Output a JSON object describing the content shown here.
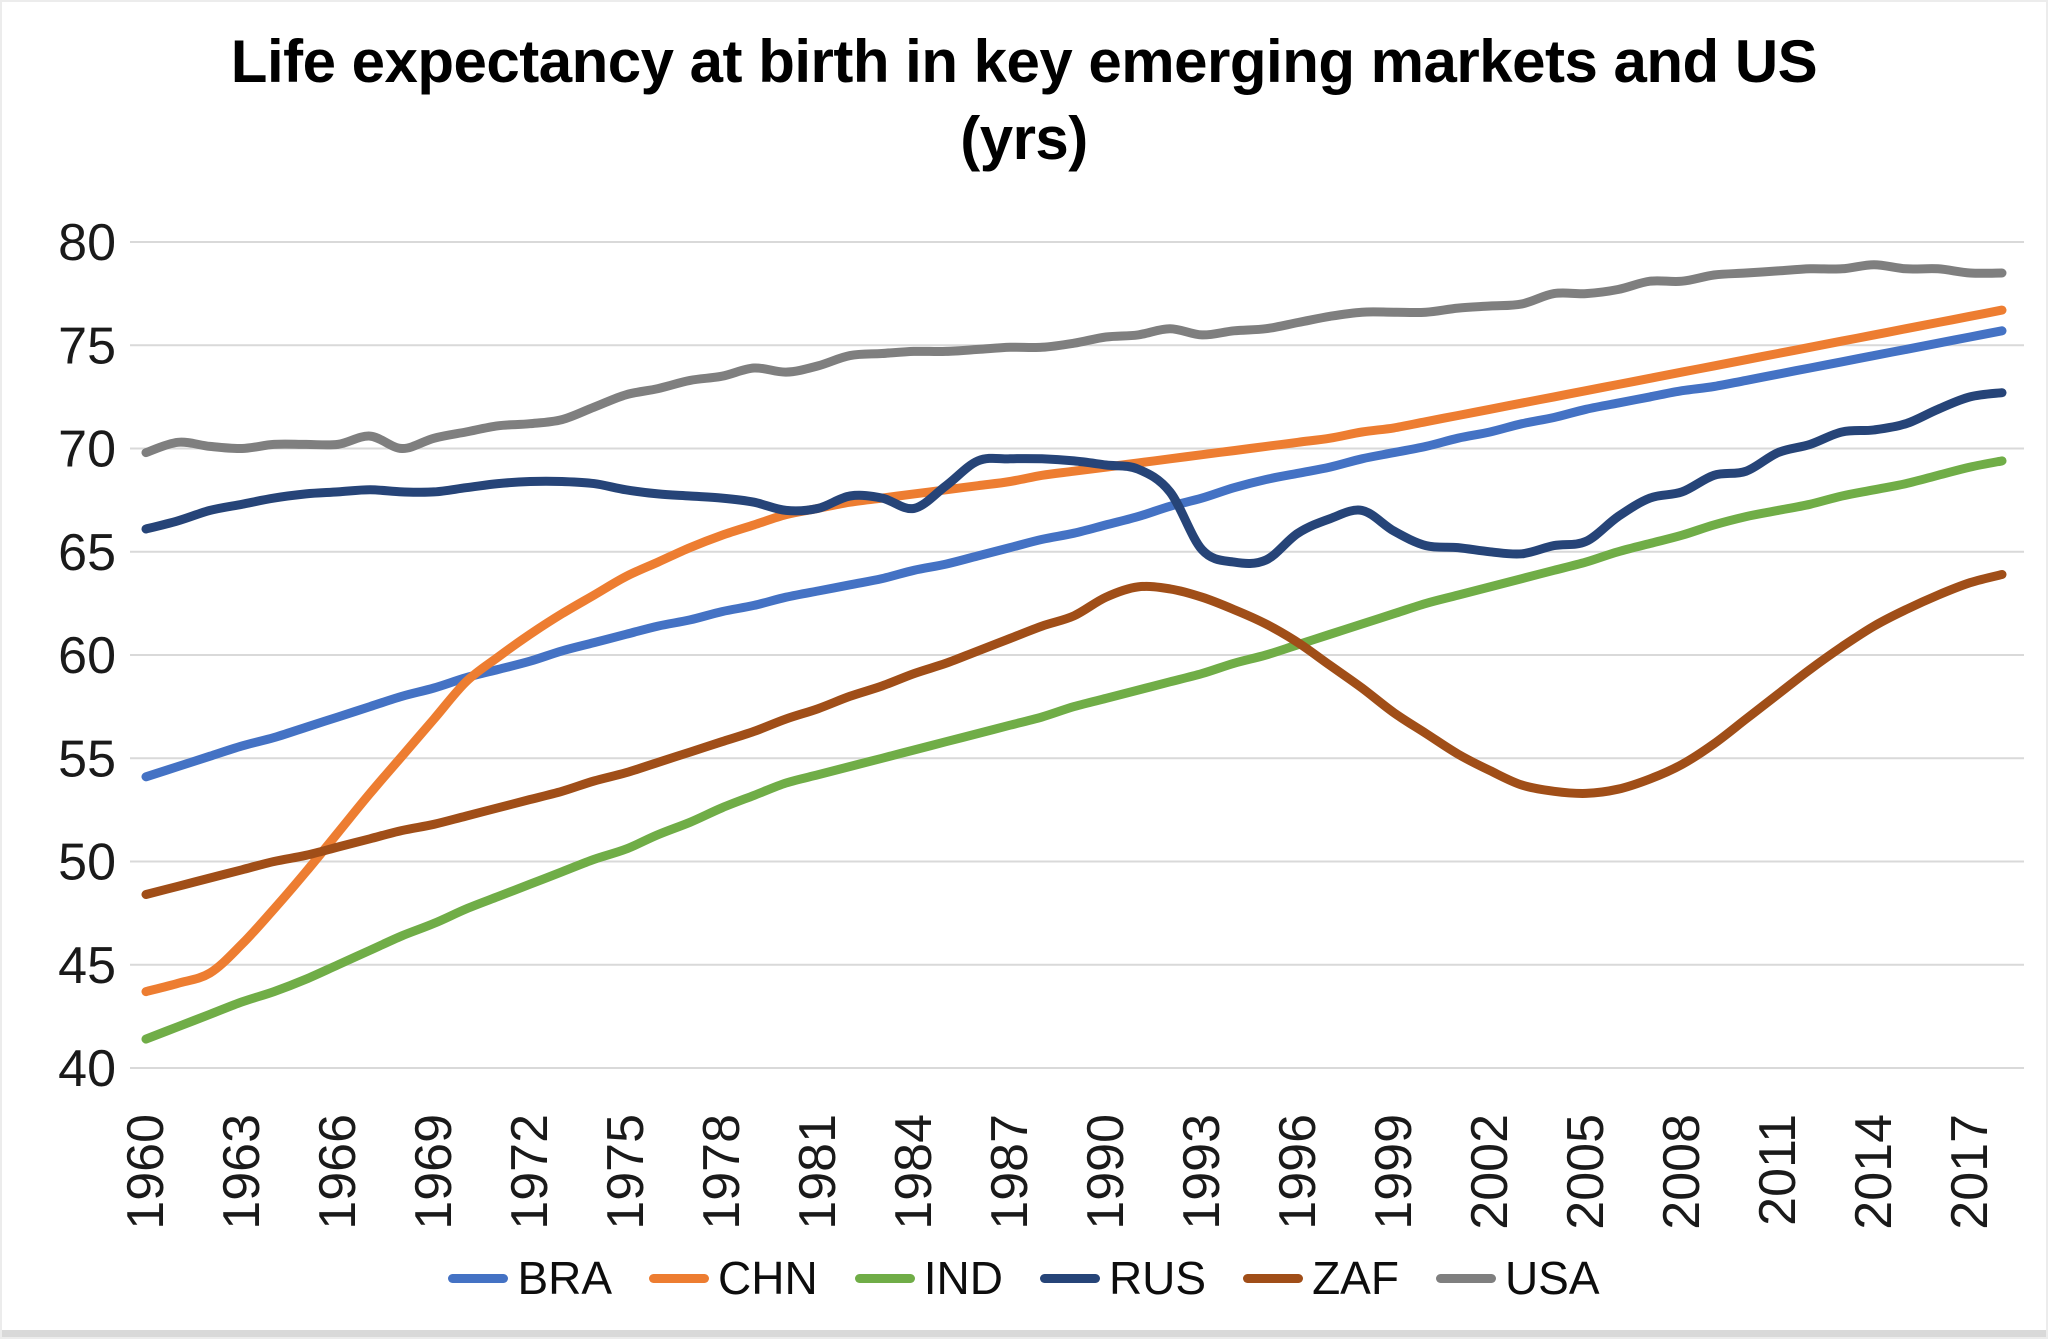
{
  "title": {
    "line1": "Life expectancy at birth in key emerging markets and US",
    "line2": "(yrs)"
  },
  "chart_data": {
    "type": "line",
    "title": "Life expectancy at birth in key emerging markets and US (yrs)",
    "xlabel": "",
    "ylabel": "",
    "ylim": [
      40,
      80
    ],
    "xlim": [
      1960,
      2018
    ],
    "grid": true,
    "gridline_color": "#d9d9d9",
    "axis_text_color": "#1a1a1a",
    "legend_position": "bottom",
    "y_ticks": [
      80,
      75,
      70,
      65,
      60,
      55,
      50,
      45,
      40
    ],
    "x_ticks": [
      1960,
      1963,
      1966,
      1969,
      1972,
      1975,
      1978,
      1981,
      1984,
      1987,
      1990,
      1993,
      1996,
      1999,
      2002,
      2005,
      2008,
      2011,
      2014,
      2017
    ],
    "years": [
      1960,
      1961,
      1962,
      1963,
      1964,
      1965,
      1966,
      1967,
      1968,
      1969,
      1970,
      1971,
      1972,
      1973,
      1974,
      1975,
      1976,
      1977,
      1978,
      1979,
      1980,
      1981,
      1982,
      1983,
      1984,
      1985,
      1986,
      1987,
      1988,
      1989,
      1990,
      1991,
      1992,
      1993,
      1994,
      1995,
      1996,
      1997,
      1998,
      1999,
      2000,
      2001,
      2002,
      2003,
      2004,
      2005,
      2006,
      2007,
      2008,
      2009,
      2010,
      2011,
      2012,
      2013,
      2014,
      2015,
      2016,
      2017,
      2018
    ],
    "series": [
      {
        "name": "BRA",
        "color": "#4472C4",
        "values": [
          54.1,
          54.6,
          55.1,
          55.6,
          56.0,
          56.5,
          57.0,
          57.5,
          58.0,
          58.4,
          58.9,
          59.3,
          59.7,
          60.2,
          60.6,
          61.0,
          61.4,
          61.7,
          62.1,
          62.4,
          62.8,
          63.1,
          63.4,
          63.7,
          64.1,
          64.4,
          64.8,
          65.2,
          65.6,
          65.9,
          66.3,
          66.7,
          67.2,
          67.6,
          68.1,
          68.5,
          68.8,
          69.1,
          69.5,
          69.8,
          70.1,
          70.5,
          70.8,
          71.2,
          71.5,
          71.9,
          72.2,
          72.5,
          72.8,
          73.0,
          73.3,
          73.6,
          73.9,
          74.2,
          74.5,
          74.8,
          75.1,
          75.4,
          75.7
        ]
      },
      {
        "name": "CHN",
        "color": "#ED7D31",
        "values": [
          43.7,
          44.1,
          44.6,
          46.0,
          47.7,
          49.5,
          51.4,
          53.3,
          55.1,
          56.9,
          58.7,
          59.9,
          61.0,
          62.0,
          62.9,
          63.8,
          64.5,
          65.2,
          65.8,
          66.3,
          66.8,
          67.1,
          67.4,
          67.6,
          67.8,
          68.0,
          68.2,
          68.4,
          68.7,
          68.9,
          69.1,
          69.3,
          69.5,
          69.7,
          69.9,
          70.1,
          70.3,
          70.5,
          70.8,
          71.0,
          71.3,
          71.6,
          71.9,
          72.2,
          72.5,
          72.8,
          73.1,
          73.4,
          73.7,
          74.0,
          74.3,
          74.6,
          74.9,
          75.2,
          75.5,
          75.8,
          76.1,
          76.4,
          76.7
        ]
      },
      {
        "name": "IND",
        "color": "#70AD47",
        "values": [
          41.4,
          42.0,
          42.6,
          43.2,
          43.7,
          44.3,
          45.0,
          45.7,
          46.4,
          47.0,
          47.7,
          48.3,
          48.9,
          49.5,
          50.1,
          50.6,
          51.3,
          51.9,
          52.6,
          53.2,
          53.8,
          54.2,
          54.6,
          55.0,
          55.4,
          55.8,
          56.2,
          56.6,
          57.0,
          57.5,
          57.9,
          58.3,
          58.7,
          59.1,
          59.6,
          60.0,
          60.5,
          61.0,
          61.5,
          62.0,
          62.5,
          62.9,
          63.3,
          63.7,
          64.1,
          64.5,
          65.0,
          65.4,
          65.8,
          66.3,
          66.7,
          67.0,
          67.3,
          67.7,
          68.0,
          68.3,
          68.7,
          69.1,
          69.4
        ]
      },
      {
        "name": "RUS",
        "color": "#264478",
        "values": [
          66.1,
          66.5,
          67.0,
          67.3,
          67.6,
          67.8,
          67.9,
          68.0,
          67.9,
          67.9,
          68.1,
          68.3,
          68.4,
          68.4,
          68.3,
          68.0,
          67.8,
          67.7,
          67.6,
          67.4,
          67.0,
          67.1,
          67.7,
          67.6,
          67.1,
          68.2,
          69.4,
          69.5,
          69.5,
          69.4,
          69.2,
          69.0,
          67.9,
          65.1,
          64.5,
          64.6,
          65.9,
          66.6,
          67.0,
          66.0,
          65.3,
          65.2,
          65.0,
          64.9,
          65.3,
          65.5,
          66.7,
          67.6,
          67.9,
          68.7,
          68.9,
          69.8,
          70.2,
          70.8,
          70.9,
          71.2,
          71.9,
          72.5,
          72.7
        ]
      },
      {
        "name": "ZAF",
        "color": "#A04E18",
        "values": [
          48.4,
          48.8,
          49.2,
          49.6,
          50.0,
          50.3,
          50.7,
          51.1,
          51.5,
          51.8,
          52.2,
          52.6,
          53.0,
          53.4,
          53.9,
          54.3,
          54.8,
          55.3,
          55.8,
          56.3,
          56.9,
          57.4,
          58.0,
          58.5,
          59.1,
          59.6,
          60.2,
          60.8,
          61.4,
          61.9,
          62.8,
          63.3,
          63.2,
          62.8,
          62.2,
          61.5,
          60.6,
          59.5,
          58.4,
          57.2,
          56.2,
          55.2,
          54.4,
          53.7,
          53.4,
          53.3,
          53.5,
          54.0,
          54.7,
          55.7,
          56.9,
          58.1,
          59.3,
          60.4,
          61.4,
          62.2,
          62.9,
          63.5,
          63.9
        ]
      },
      {
        "name": "USA",
        "color": "#7F7F7F",
        "values": [
          69.8,
          70.3,
          70.1,
          70.0,
          70.2,
          70.2,
          70.2,
          70.6,
          70.0,
          70.5,
          70.8,
          71.1,
          71.2,
          71.4,
          72.0,
          72.6,
          72.9,
          73.3,
          73.5,
          73.9,
          73.7,
          74.0,
          74.5,
          74.6,
          74.7,
          74.7,
          74.8,
          74.9,
          74.9,
          75.1,
          75.4,
          75.5,
          75.8,
          75.5,
          75.7,
          75.8,
          76.1,
          76.4,
          76.6,
          76.6,
          76.6,
          76.8,
          76.9,
          77.0,
          77.5,
          77.5,
          77.7,
          78.1,
          78.1,
          78.4,
          78.5,
          78.6,
          78.7,
          78.7,
          78.9,
          78.7,
          78.7,
          78.5,
          78.5
        ]
      }
    ]
  }
}
